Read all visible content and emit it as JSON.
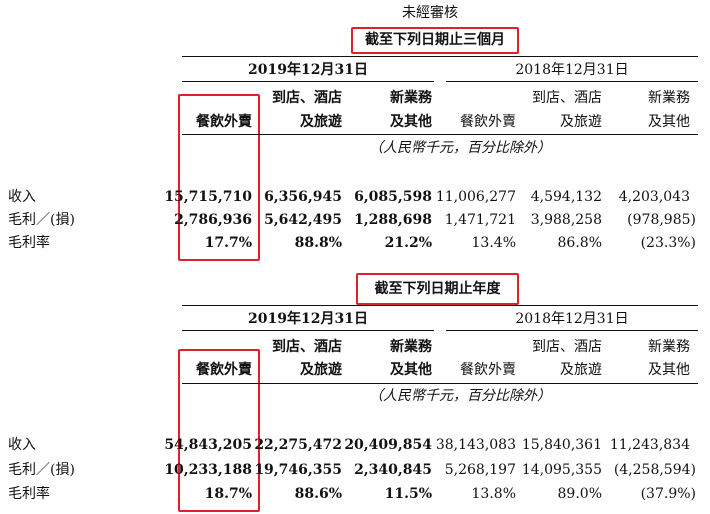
{
  "unaudited_label": "未經審核",
  "headers": {
    "year_2019": "2019年12月31日",
    "year_2018": "2018年12月31日",
    "col_food_delivery": "餐飲外賣",
    "col_instore_line1": "到店、酒店",
    "col_instore_line2": "及旅遊",
    "col_new_line1": "新業務",
    "col_new_line2": "及其他",
    "currency_note": "（人民幣千元，百分比除外）"
  },
  "section1": {
    "title": "截至下列日期止三個月",
    "rows": [
      {
        "label": "收入",
        "values": [
          "15,715,710",
          "6,356,945",
          "6,085,598",
          "11,006,277",
          "4,594,132",
          "4,203,043"
        ]
      },
      {
        "label": "毛利／(損)",
        "values": [
          "2,786,936",
          "5,642,495",
          "1,288,698",
          "1,471,721",
          "3,988,258",
          "(978,985)"
        ]
      },
      {
        "label": "毛利率",
        "values": [
          "17.7%",
          "88.8%",
          "21.2%",
          "13.4%",
          "86.8%",
          "(23.3%)"
        ]
      }
    ]
  },
  "section2": {
    "title": "截至下列日期止年度",
    "rows": [
      {
        "label": "收入",
        "values": [
          "54,843,205",
          "22,275,472",
          "20,409,854",
          "38,143,083",
          "15,840,361",
          "11,243,834"
        ]
      },
      {
        "label": "毛利／(損)",
        "values": [
          "10,233,188",
          "19,746,355",
          "2,340,845",
          "5,268,197",
          "14,095,355",
          "(4,258,594)"
        ]
      },
      {
        "label": "毛利率",
        "values": [
          "18.7%",
          "88.6%",
          "11.5%",
          "13.8%",
          "89.0%",
          "(37.9%)"
        ]
      }
    ]
  },
  "colors": {
    "highlight": "#e0202a"
  }
}
